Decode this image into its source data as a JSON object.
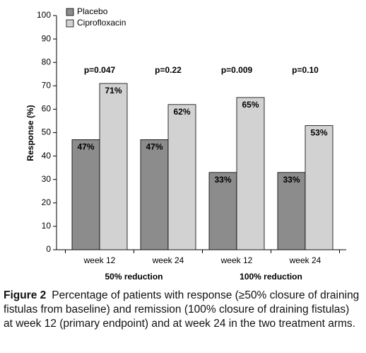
{
  "chart_data": {
    "type": "bar",
    "y_axis_label": "Response (%)",
    "categories": [
      "week 12",
      "week 24",
      "week 12",
      "week 24"
    ],
    "category_groups": [
      "50% reduction",
      "100% reduction"
    ],
    "annotations": [
      "p=0.047",
      "p=0.22",
      "p=0.009",
      "p=0.10"
    ],
    "series": [
      {
        "name": "Placebo",
        "color": "#8c8c8c",
        "values": [
          47,
          47,
          33,
          33
        ],
        "value_labels": [
          "47%",
          "47%",
          "33%",
          "33%"
        ]
      },
      {
        "name": "Ciprofloxacin",
        "color": "#d2d2d2",
        "values": [
          71,
          62,
          65,
          53
        ],
        "value_labels": [
          "71%",
          "62%",
          "65%",
          "53%"
        ]
      }
    ],
    "ylim": [
      0,
      100
    ],
    "yticks": [
      0,
      10,
      20,
      30,
      40,
      50,
      60,
      70,
      80,
      90,
      100
    ],
    "grid": false,
    "legend": "top-left"
  },
  "caption": {
    "label": "Figure 2",
    "text": "Percentage of patients with response (≥50% closure of draining fistulas from baseline) and remission (100% closure of draining fistulas) at week 12 (primary endpoint) and at week 24 in the two treatment arms."
  }
}
